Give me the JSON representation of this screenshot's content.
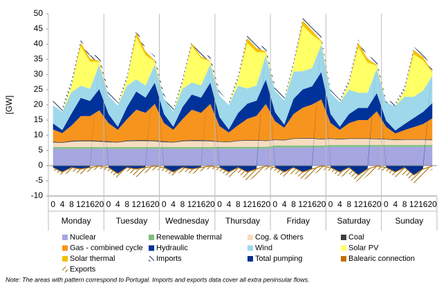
{
  "chart_data": {
    "type": "stacked-area",
    "y_label": "[GW]",
    "ylim": [
      -10,
      50
    ],
    "yticks": [
      -10,
      -5,
      0,
      5,
      10,
      15,
      20,
      25,
      30,
      35,
      40,
      45,
      50
    ],
    "categories": [
      "0",
      "4",
      "8",
      "12",
      "16",
      "20",
      "0",
      "4",
      "8",
      "12",
      "16",
      "20",
      "0",
      "4",
      "8",
      "12",
      "16",
      "20",
      "0",
      "4",
      "8",
      "12",
      "16",
      "20",
      "0",
      "4",
      "8",
      "12",
      "16",
      "20",
      "0",
      "4",
      "8",
      "12",
      "16",
      "20",
      "0",
      "4",
      "8",
      "12",
      "16",
      "20"
    ],
    "groups": [
      "Monday",
      "Tuesday",
      "Wednesday",
      "Thursday",
      "Friday",
      "Saturday",
      "Sunday"
    ],
    "series": [
      {
        "name": "Nuclear",
        "color": "#a6a6e0",
        "values": [
          5.5,
          5.5,
          5.5,
          5.5,
          5.5,
          5.5,
          5.5,
          5.5,
          5.5,
          5.5,
          5.5,
          5.5,
          5.5,
          5.5,
          5.5,
          5.5,
          5.5,
          5.5,
          5.6,
          5.6,
          5.6,
          5.6,
          5.6,
          5.6,
          6,
          6,
          6,
          6,
          6,
          6,
          6.2,
          6.2,
          6.2,
          6.2,
          6.2,
          6.2,
          6.2,
          6.2,
          6.2,
          6.2,
          6.2,
          6.2
        ]
      },
      {
        "name": "Renewable thermal",
        "color": "#7fbf7f",
        "values": [
          0.6,
          0.6,
          0.6,
          0.6,
          0.6,
          0.6,
          0.6,
          0.6,
          0.6,
          0.6,
          0.6,
          0.6,
          0.6,
          0.6,
          0.6,
          0.6,
          0.6,
          0.6,
          0.6,
          0.6,
          0.6,
          0.6,
          0.6,
          0.6,
          0.6,
          0.6,
          0.6,
          0.6,
          0.6,
          0.6,
          0.6,
          0.6,
          0.6,
          0.6,
          0.6,
          0.6,
          0.6,
          0.6,
          0.6,
          0.6,
          0.6,
          0.6
        ]
      },
      {
        "name": "Cog. & Others",
        "color": "#f7dcc0",
        "values": [
          1.5,
          1.4,
          1.8,
          1.9,
          1.9,
          1.8,
          1.6,
          1.5,
          1.9,
          2,
          2,
          1.9,
          1.6,
          1.5,
          1.9,
          2,
          2,
          1.9,
          1.6,
          1.5,
          1.9,
          2,
          2,
          1.9,
          1.8,
          1.7,
          2.2,
          2.3,
          2.3,
          2,
          2,
          1.8,
          2,
          2,
          2,
          1.9,
          1.8,
          1.6,
          1.7,
          1.7,
          1.7,
          1.6
        ]
      },
      {
        "name": "Coal",
        "color": "#404040",
        "values": [
          0.3,
          0.2,
          0.3,
          0.3,
          0.3,
          0.3,
          0.3,
          0.2,
          0.3,
          0.3,
          0.3,
          0.3,
          0.3,
          0.2,
          0.3,
          0.3,
          0.3,
          0.3,
          0.2,
          0.2,
          0.2,
          0.2,
          0.2,
          0.2,
          0.2,
          0.2,
          0.2,
          0.2,
          0.2,
          0.2,
          0.2,
          0.2,
          0.2,
          0.2,
          0.2,
          0.2,
          0.2,
          0.2,
          0.2,
          0.2,
          0.2,
          0.2
        ]
      },
      {
        "name": "Gas - combined cycle",
        "color": "#f7941d",
        "values": [
          4,
          3,
          5,
          8,
          8,
          10,
          6,
          4,
          7,
          10,
          9,
          12,
          6,
          4,
          7,
          10,
          9,
          12,
          5,
          3,
          5,
          7,
          8,
          12,
          6,
          4,
          8,
          10,
          11,
          13,
          5,
          3,
          5,
          6,
          6,
          9,
          4,
          2,
          3,
          4,
          5,
          7
        ]
      },
      {
        "name": "Hydraulic",
        "color": "#003399",
        "values": [
          2,
          1,
          4,
          6,
          5,
          7,
          3,
          1,
          4,
          6,
          5,
          7,
          3,
          1,
          4,
          5,
          5,
          7,
          3,
          1,
          4,
          5,
          5,
          8,
          3,
          1,
          5,
          6,
          6,
          9,
          3,
          1,
          3,
          4,
          4,
          6,
          2,
          1,
          2,
          3,
          4,
          5
        ]
      },
      {
        "name": "Wind",
        "color": "#9ed8ea",
        "values": [
          6,
          6,
          7,
          4,
          4,
          8,
          6,
          7,
          7,
          4,
          4,
          6,
          5,
          5,
          6,
          4,
          4,
          6,
          7,
          8,
          9,
          5,
          5,
          8,
          7,
          8,
          9,
          6,
          6,
          9,
          7,
          8,
          8,
          5,
          5,
          8,
          6,
          8,
          9,
          7,
          7,
          9
        ]
      },
      {
        "name": "Solar PV",
        "color": "#ffff66",
        "values": [
          0,
          0,
          2,
          13,
          9,
          1,
          0,
          0,
          2,
          14,
          10,
          1,
          0,
          0,
          2,
          12,
          9,
          1,
          0,
          0,
          2,
          15,
          11,
          1,
          0,
          0,
          2,
          15,
          11,
          1,
          0,
          0,
          2,
          15,
          10,
          1,
          0,
          0,
          2,
          14,
          10,
          1
        ]
      },
      {
        "name": "Solar thermal",
        "color": "#f5c000",
        "values": [
          0,
          0,
          0,
          1.2,
          1,
          0.3,
          0,
          0,
          0,
          1.5,
          1.2,
          0.3,
          0,
          0,
          0,
          0.8,
          0.6,
          0.2,
          0,
          0,
          0,
          1.6,
          1.3,
          0.3,
          0,
          0,
          0,
          1.7,
          1.4,
          0.3,
          0,
          0,
          0,
          1.5,
          1.2,
          0.3,
          0,
          0,
          0,
          1.4,
          1.1,
          0.3
        ]
      },
      {
        "name": "Imports",
        "color": "#203864",
        "hatched": true,
        "values": [
          2,
          1.5,
          2,
          1,
          1,
          2,
          1.5,
          1,
          1.5,
          1,
          1,
          1.5,
          1.5,
          1,
          1.5,
          1,
          1,
          1.5,
          1.5,
          1,
          1.5,
          1,
          1,
          1.5,
          1.5,
          1,
          1.5,
          1,
          1,
          1.5,
          1,
          1,
          1.5,
          1,
          1,
          1.5,
          1,
          1,
          1.5,
          1,
          1,
          1.5
        ]
      },
      {
        "name": "Total pumping",
        "color": "#00308f",
        "values": [
          -0.5,
          -2,
          -0.5,
          -1,
          -0.5,
          0,
          -0.5,
          -2.5,
          -0.5,
          -1,
          -0.5,
          0,
          -0.5,
          -2,
          -0.5,
          -1,
          -0.5,
          0,
          -0.5,
          -2,
          -0.5,
          -2,
          -1,
          0,
          -0.5,
          -2,
          -0.5,
          -2,
          -1,
          0,
          -0.5,
          -2,
          -0.5,
          -3,
          -1,
          0,
          -0.5,
          -2,
          -0.5,
          -3,
          -1,
          0
        ]
      },
      {
        "name": "Balearic connection",
        "color": "#c07000",
        "values": [
          -0.3,
          -0.3,
          -0.3,
          -0.3,
          -0.3,
          -0.3,
          -0.3,
          -0.3,
          -0.3,
          -0.3,
          -0.3,
          -0.3,
          -0.3,
          -0.3,
          -0.3,
          -0.3,
          -0.3,
          -0.3,
          -0.3,
          -0.3,
          -0.3,
          -0.3,
          -0.3,
          -0.3,
          -0.3,
          -0.3,
          -0.3,
          -0.3,
          -0.3,
          -0.3,
          -0.3,
          -0.3,
          -0.3,
          -0.3,
          -0.3,
          -0.3,
          -0.3,
          -0.3,
          -0.3,
          -0.3,
          -0.3,
          -0.3
        ]
      },
      {
        "name": "Exports",
        "color": "#a0700a",
        "hatched": true,
        "values": [
          -0.7,
          -1,
          -1,
          -1.5,
          -1,
          -0.7,
          -1,
          -1.5,
          -1,
          -2.5,
          -1.5,
          -1,
          -1,
          -1.2,
          -1,
          -1.5,
          -1,
          -0.7,
          -1,
          -1.5,
          -1.5,
          -3,
          -2,
          -1,
          -1,
          -1.5,
          -1.5,
          -2.5,
          -2,
          -1,
          -1,
          -1.5,
          -2,
          -2.5,
          -2,
          -1,
          -1,
          -1.5,
          -2,
          -2.5,
          -2,
          -1
        ]
      }
    ],
    "note": "Note: The areas with pattern correspond to Portugal. Imports and exports data cover all extra peninsular flows."
  }
}
